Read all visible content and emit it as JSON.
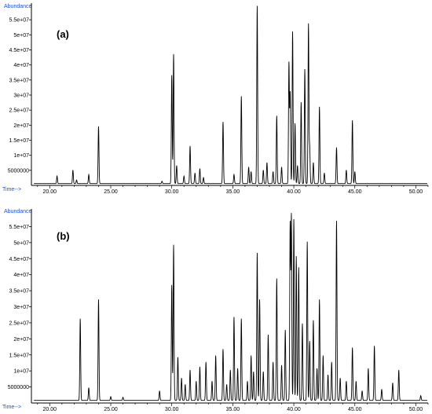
{
  "chart_data": [
    {
      "type": "line",
      "panel_label": "(a)",
      "y_label_text": "Abundance",
      "x_label_text": "Time-->",
      "xlim": [
        18.5,
        51.0
      ],
      "ylim": [
        0,
        60000000
      ],
      "x_ticks": [
        "20.00",
        "25.00",
        "30.00",
        "35.00",
        "40.00",
        "45.00",
        "50.00"
      ],
      "y_ticks": [
        "5000000",
        "1e+07",
        "1.5e+07",
        "2e+07",
        "2.5e+07",
        "3e+07",
        "3.5e+07",
        "4e+07",
        "4.5e+07",
        "5e+07",
        "5.5e+07"
      ],
      "baseline": 600000,
      "peaks": [
        [
          20.6,
          2500000
        ],
        [
          21.9,
          4500000
        ],
        [
          22.2,
          1200000
        ],
        [
          23.2,
          3000000
        ],
        [
          24.0,
          19000000
        ],
        [
          29.2,
          800000
        ],
        [
          30.0,
          36000000
        ],
        [
          30.15,
          43000000
        ],
        [
          30.4,
          6000000
        ],
        [
          31.0,
          2500000
        ],
        [
          31.5,
          12500000
        ],
        [
          31.9,
          3500000
        ],
        [
          32.3,
          5000000
        ],
        [
          32.6,
          2000000
        ],
        [
          34.2,
          20500000
        ],
        [
          35.1,
          3000000
        ],
        [
          35.7,
          29000000
        ],
        [
          36.3,
          5500000
        ],
        [
          36.5,
          4000000
        ],
        [
          37.0,
          59000000
        ],
        [
          37.5,
          4500000
        ],
        [
          37.8,
          7000000
        ],
        [
          38.3,
          4000000
        ],
        [
          38.6,
          22500000
        ],
        [
          39.0,
          5500000
        ],
        [
          39.6,
          40000000
        ],
        [
          39.7,
          30000000
        ],
        [
          39.9,
          50500000
        ],
        [
          40.1,
          20000000
        ],
        [
          40.3,
          6000000
        ],
        [
          40.6,
          27000000
        ],
        [
          40.9,
          38000000
        ],
        [
          41.2,
          53000000
        ],
        [
          41.3,
          12000000
        ],
        [
          41.6,
          7000000
        ],
        [
          42.1,
          25500000
        ],
        [
          42.5,
          3500000
        ],
        [
          43.5,
          12000000
        ],
        [
          44.3,
          4500000
        ],
        [
          44.8,
          21000000
        ],
        [
          45.0,
          4000000
        ]
      ]
    },
    {
      "type": "line",
      "panel_label": "(b)",
      "y_label_text": "Abundance",
      "x_label_text": "Time-->",
      "xlim": [
        18.5,
        51.0
      ],
      "ylim": [
        0,
        60000000
      ],
      "x_ticks": [
        "20.00",
        "25.00",
        "30.00",
        "35.00",
        "40.00",
        "45.00",
        "50.00"
      ],
      "y_ticks": [
        "5000000",
        "1e+07",
        "1.5e+07",
        "2e+07",
        "2.5e+07",
        "3e+07",
        "3.5e+07",
        "4e+07",
        "4.5e+07",
        "5e+07",
        "5.5e+07"
      ],
      "baseline": 800000,
      "peaks": [
        [
          22.5,
          25500000
        ],
        [
          23.2,
          4000000
        ],
        [
          24.0,
          31500000
        ],
        [
          25.0,
          1200000
        ],
        [
          26.0,
          1000000
        ],
        [
          29.0,
          3000000
        ],
        [
          30.0,
          36000000
        ],
        [
          30.15,
          48500000
        ],
        [
          30.5,
          13500000
        ],
        [
          30.8,
          7000000
        ],
        [
          31.1,
          5000000
        ],
        [
          31.5,
          9500000
        ],
        [
          32.0,
          6000000
        ],
        [
          32.3,
          10500000
        ],
        [
          32.8,
          12000000
        ],
        [
          33.3,
          6000000
        ],
        [
          33.6,
          14000000
        ],
        [
          34.2,
          16000000
        ],
        [
          34.5,
          5000000
        ],
        [
          34.8,
          9500000
        ],
        [
          35.1,
          26000000
        ],
        [
          35.4,
          10000000
        ],
        [
          35.7,
          25500000
        ],
        [
          36.2,
          6000000
        ],
        [
          36.5,
          14000000
        ],
        [
          36.7,
          9000000
        ],
        [
          37.0,
          46000000
        ],
        [
          37.2,
          31500000
        ],
        [
          37.5,
          9000000
        ],
        [
          37.9,
          20500000
        ],
        [
          38.3,
          12000000
        ],
        [
          38.6,
          38000000
        ],
        [
          39.0,
          11000000
        ],
        [
          39.3,
          22000000
        ],
        [
          39.7,
          55000000
        ],
        [
          39.8,
          57500000
        ],
        [
          40.0,
          56500000
        ],
        [
          40.2,
          45000000
        ],
        [
          40.4,
          41500000
        ],
        [
          40.7,
          24000000
        ],
        [
          41.1,
          49500000
        ],
        [
          41.3,
          18500000
        ],
        [
          41.6,
          25000000
        ],
        [
          41.9,
          10000000
        ],
        [
          42.1,
          31500000
        ],
        [
          42.4,
          14000000
        ],
        [
          42.8,
          8000000
        ],
        [
          43.1,
          12000000
        ],
        [
          43.5,
          56000000
        ],
        [
          43.8,
          7000000
        ],
        [
          44.3,
          6000000
        ],
        [
          44.8,
          16500000
        ],
        [
          45.1,
          6000000
        ],
        [
          45.6,
          3000000
        ],
        [
          46.1,
          10000000
        ],
        [
          46.6,
          17000000
        ],
        [
          47.2,
          3500000
        ],
        [
          48.1,
          5500000
        ],
        [
          48.6,
          9500000
        ],
        [
          50.4,
          1500000
        ]
      ]
    }
  ]
}
